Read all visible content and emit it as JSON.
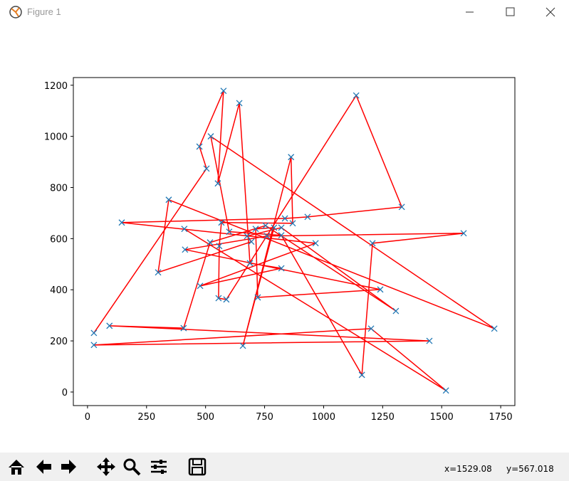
{
  "window": {
    "title": "Figure 1"
  },
  "status": {
    "x": "x=1529.08",
    "y": "y=567.018"
  },
  "chart_data": {
    "type": "line",
    "x": [
      27,
      504,
      474,
      576,
      552,
      643,
      688,
      821,
      477,
      966,
      145,
      836,
      932,
      1331,
      1138,
      588,
      555,
      558,
      567,
      869,
      862,
      658,
      790,
      712,
      721,
      1240,
      413,
      760,
      1593,
      1207,
      1162,
      821,
      600,
      522,
      1723,
      344,
      299,
      694,
      676,
      821,
      1306,
      754,
      519,
      407,
      93,
      1448,
      27,
      1201,
      1518,
      410
    ],
    "y": [
      231,
      874,
      960,
      1178,
      816,
      1130,
      504,
      484,
      415,
      582,
      663,
      679,
      685,
      724,
      1160,
      362,
      367,
      571,
      663,
      660,
      919,
      181,
      643,
      638,
      370,
      401,
      557,
      610,
      621,
      582,
      67,
      613,
      627,
      1000,
      248,
      752,
      468,
      588,
      610,
      643,
      317,
      651,
      585,
      250,
      259,
      200,
      184,
      248,
      6,
      638
    ],
    "line_color": "#ff0000",
    "marker_color": "#1f77b4",
    "xlim": [
      -60,
      1810
    ],
    "ylim": [
      -53,
      1230
    ],
    "xticks": [
      0,
      250,
      500,
      750,
      1000,
      1250,
      1500,
      1750
    ],
    "yticks": [
      0,
      200,
      400,
      600,
      800,
      1000,
      1200
    ]
  }
}
